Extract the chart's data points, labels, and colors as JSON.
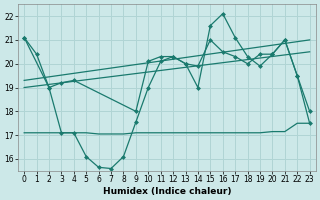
{
  "xlabel": "Humidex (Indice chaleur)",
  "bg_color": "#cce8e8",
  "grid_color": "#b0d4d4",
  "line_color": "#1a7a6e",
  "xlim": [
    -0.5,
    23.5
  ],
  "ylim": [
    15.5,
    22.5
  ],
  "xticks": [
    0,
    1,
    2,
    3,
    4,
    5,
    6,
    7,
    8,
    9,
    10,
    11,
    12,
    13,
    14,
    15,
    16,
    17,
    18,
    19,
    20,
    21,
    22,
    23
  ],
  "yticks": [
    16,
    17,
    18,
    19,
    20,
    21,
    22
  ],
  "curve1_x": [
    0,
    1,
    2,
    3,
    4,
    5,
    6,
    7,
    8,
    9,
    10,
    11,
    12,
    13,
    14,
    15,
    16,
    17,
    18,
    19,
    20,
    21,
    22,
    23
  ],
  "curve1_y": [
    21.1,
    20.4,
    19.0,
    17.1,
    17.1,
    16.1,
    15.65,
    15.6,
    16.1,
    17.55,
    19.0,
    20.1,
    20.3,
    20.0,
    19.0,
    21.6,
    22.1,
    21.1,
    20.3,
    19.9,
    20.4,
    21.0,
    19.5,
    18.0
  ],
  "curve2_x": [
    0,
    2,
    3,
    4,
    9,
    10,
    11,
    12,
    13,
    14,
    15,
    16,
    17,
    18,
    19,
    20,
    21,
    22,
    23
  ],
  "curve2_y": [
    21.1,
    19.0,
    19.2,
    19.3,
    18.0,
    20.1,
    20.3,
    20.3,
    20.0,
    19.9,
    21.0,
    20.5,
    20.3,
    20.0,
    20.4,
    20.4,
    21.0,
    19.5,
    17.5
  ],
  "flat_x": [
    0,
    3,
    4,
    5,
    6,
    7,
    8,
    9,
    10,
    11,
    12,
    13,
    14,
    15,
    16,
    17,
    18,
    19,
    20,
    21,
    22,
    23
  ],
  "flat_y": [
    17.1,
    17.1,
    17.1,
    17.1,
    17.05,
    17.05,
    17.05,
    17.1,
    17.1,
    17.1,
    17.1,
    17.1,
    17.1,
    17.1,
    17.1,
    17.1,
    17.1,
    17.1,
    17.15,
    17.15,
    17.5,
    17.5
  ],
  "trend1_x0": 0,
  "trend1_y0": 19.0,
  "trend1_x1": 23,
  "trend1_y1": 20.5,
  "trend2_x0": 0,
  "trend2_y0": 19.3,
  "trend2_x1": 23,
  "trend2_y1": 21.0
}
